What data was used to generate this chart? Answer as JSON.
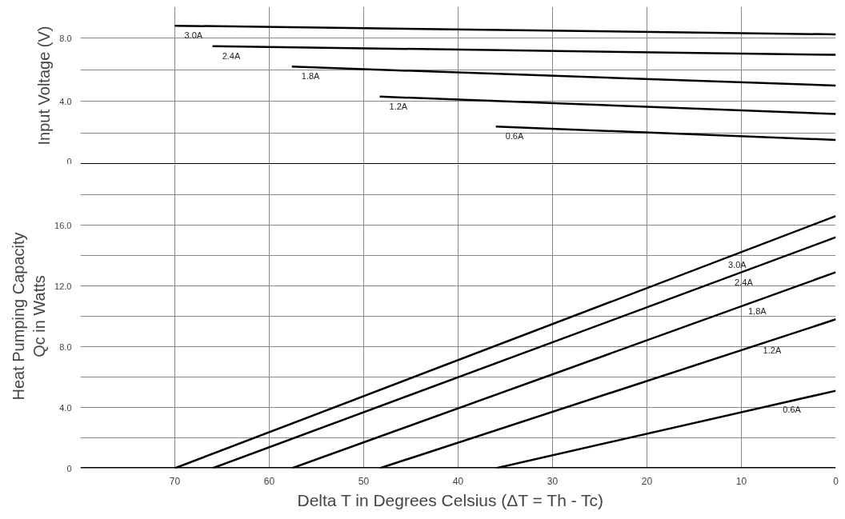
{
  "chart_data": [
    {
      "type": "line",
      "ylabel": "Input Voltage (V)",
      "xlim": [
        80,
        0
      ],
      "xticks": [
        70,
        60,
        50,
        40,
        30,
        20,
        10,
        0
      ],
      "ylim": [
        0,
        10
      ],
      "yticks": [
        {
          "value": 0,
          "label": "0"
        },
        {
          "value": 2,
          "label": null
        },
        {
          "value": 4,
          "label": "4.0"
        },
        {
          "value": 6,
          "label": null
        },
        {
          "value": 8,
          "label": "8.0"
        }
      ],
      "tick_labels": "y",
      "grid": true,
      "marker": "none",
      "line_style": "solid",
      "series": [
        {
          "name": "3.0A",
          "color": "#000000",
          "x": [
            70,
            0
          ],
          "values": [
            8.8,
            8.25
          ]
        },
        {
          "name": "2.4A",
          "color": "#000000",
          "x": [
            66,
            0
          ],
          "values": [
            7.5,
            6.95
          ]
        },
        {
          "name": "1.8A",
          "color": "#000000",
          "x": [
            57.6,
            0
          ],
          "values": [
            6.2,
            5.0
          ]
        },
        {
          "name": "1.2A",
          "color": "#000000",
          "x": [
            48.3,
            0
          ],
          "values": [
            4.3,
            3.2
          ]
        },
        {
          "name": "0.6A",
          "color": "#000000",
          "x": [
            36,
            0
          ],
          "values": [
            2.4,
            1.55
          ]
        }
      ]
    },
    {
      "type": "line",
      "xlabel": "Delta T in Degrees Celsius    (ΔT = Th - Tc)",
      "ylabel": "Heat Pumping Capacity\nQc in Watts",
      "xlim": [
        80,
        0
      ],
      "xticks": [
        70,
        60,
        50,
        40,
        30,
        20,
        10,
        0
      ],
      "ylim": [
        0,
        20
      ],
      "yticks": [
        {
          "value": 0,
          "label": "0"
        },
        {
          "value": 2,
          "label": null
        },
        {
          "value": 4,
          "label": "4.0"
        },
        {
          "value": 6,
          "label": null
        },
        {
          "value": 8,
          "label": "8.0"
        },
        {
          "value": 10,
          "label": null
        },
        {
          "value": 12,
          "label": "12.0"
        },
        {
          "value": 14,
          "label": null
        },
        {
          "value": 16,
          "label": "16.0"
        },
        {
          "value": 18,
          "label": null
        }
      ],
      "grid": true,
      "marker": "none",
      "line_style": "solid",
      "series": [
        {
          "name": "3.0A",
          "color": "#000000",
          "x": [
            70,
            0
          ],
          "values": [
            0,
            16.6
          ]
        },
        {
          "name": "2.4A",
          "color": "#000000",
          "x": [
            66,
            0
          ],
          "values": [
            0,
            15.2
          ]
        },
        {
          "name": "1.8A",
          "color": "#000000",
          "x": [
            57.6,
            0
          ],
          "values": [
            0,
            12.9
          ]
        },
        {
          "name": "1.2A",
          "color": "#000000",
          "x": [
            48.3,
            0
          ],
          "values": [
            0,
            9.8
          ]
        },
        {
          "name": "0.6A",
          "color": "#000000",
          "x": [
            36,
            0
          ],
          "values": [
            0,
            5.1
          ]
        }
      ]
    }
  ]
}
